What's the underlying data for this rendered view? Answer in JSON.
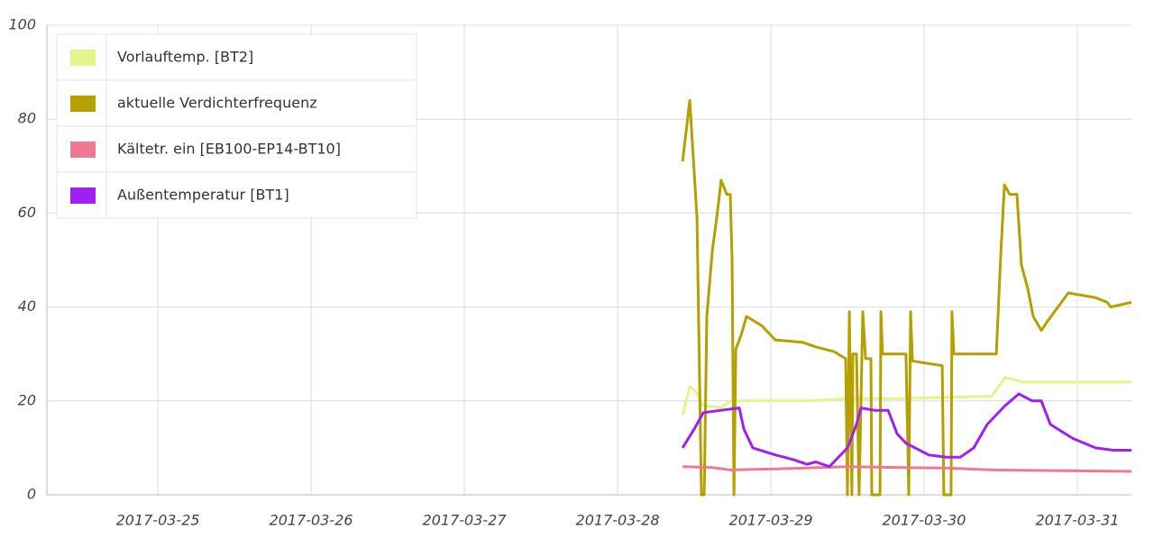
{
  "chart_data": {
    "type": "line",
    "xlim": [
      24.276,
      31.353
    ],
    "xticks": [
      {
        "value": 25,
        "label": "2017-03-25"
      },
      {
        "value": 26,
        "label": "2017-03-26"
      },
      {
        "value": 27,
        "label": "2017-03-27"
      },
      {
        "value": 28,
        "label": "2017-03-28"
      },
      {
        "value": 29,
        "label": "2017-03-29"
      },
      {
        "value": 30,
        "label": "2017-03-30"
      },
      {
        "value": 31,
        "label": "2017-03-31"
      }
    ],
    "ylim": [
      0,
      100
    ],
    "yticks": [
      0,
      20,
      40,
      60,
      80,
      100
    ],
    "grid": true,
    "legend": "upper left",
    "series": [
      {
        "name": "Vorlauftemp. [BT2]",
        "color": "#e2f58a",
        "x": [
          28.424,
          28.471,
          28.512,
          28.559,
          28.676,
          28.735,
          29.265,
          29.5,
          29.853,
          30.441,
          30.529,
          30.647,
          31.353
        ],
        "values": [
          17,
          23,
          22,
          19,
          18.5,
          20,
          20,
          20.5,
          20.5,
          21,
          25,
          24,
          24
        ]
      },
      {
        "name": "aktuelle Verdichterfrequenz",
        "color": "#b5a000",
        "x": [
          28.424,
          28.471,
          28.518,
          28.547,
          28.565,
          28.582,
          28.618,
          28.647,
          28.676,
          28.712,
          28.735,
          28.747,
          28.759,
          28.771,
          28.806,
          28.841,
          28.941,
          29.029,
          29.206,
          29.294,
          29.412,
          29.488,
          29.5,
          29.512,
          29.529,
          29.535,
          29.559,
          29.576,
          29.6,
          29.618,
          29.653,
          29.659,
          29.712,
          29.718,
          29.729,
          29.882,
          29.9,
          29.912,
          29.924,
          30.118,
          30.129,
          30.176,
          30.182,
          30.194,
          30.471,
          30.5,
          30.524,
          30.559,
          30.606,
          30.635,
          30.676,
          30.712,
          30.765,
          30.806,
          30.941,
          31.118,
          31.194,
          31.218,
          31.353
        ],
        "values": [
          71,
          84,
          59,
          0,
          0,
          38,
          52,
          59,
          67,
          64,
          64,
          50,
          0,
          31,
          34,
          38,
          36,
          33,
          32.5,
          31.5,
          30.5,
          29,
          0,
          39,
          0,
          30,
          30,
          0,
          39,
          29,
          29,
          0,
          0,
          39,
          30,
          30,
          0,
          39,
          28.5,
          27.5,
          0,
          0,
          39,
          30,
          30,
          51,
          66,
          64,
          64,
          49,
          44,
          38,
          35,
          37,
          43,
          42,
          41,
          40,
          41
        ]
      },
      {
        "name": "Kältetr. ein [EB100-EP14-BT10]",
        "color": "#f07890",
        "x": [
          28.424,
          28.618,
          28.735,
          29.029,
          29.5,
          29.853,
          30.147,
          30.441,
          31.353
        ],
        "values": [
          6,
          5.8,
          5.3,
          5.5,
          6,
          5.8,
          5.7,
          5.3,
          5
        ]
      },
      {
        "name": "Außentemperatur [BT1]",
        "color": "#a020f0",
        "x": [
          28.424,
          28.5,
          28.559,
          28.676,
          28.794,
          28.824,
          28.882,
          29.029,
          29.147,
          29.235,
          29.294,
          29.382,
          29.5,
          29.559,
          29.588,
          29.676,
          29.765,
          29.824,
          29.882,
          30.029,
          30.147,
          30.235,
          30.324,
          30.412,
          30.529,
          30.618,
          30.706,
          30.765,
          30.824,
          30.971,
          31.118,
          31.235,
          31.353
        ],
        "values": [
          10,
          14,
          17.5,
          18,
          18.5,
          14,
          10,
          8.5,
          7.5,
          6.5,
          7,
          6,
          10,
          15,
          18.5,
          18,
          18,
          13,
          11,
          8.5,
          8,
          8,
          10,
          15,
          19,
          21.5,
          20,
          20,
          15,
          12,
          10,
          9.5,
          9.5
        ]
      }
    ]
  }
}
